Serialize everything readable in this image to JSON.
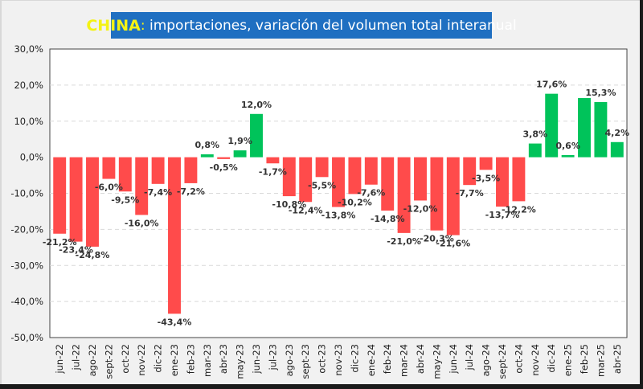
{
  "chart_data": {
    "type": "bar",
    "title": {
      "country": "CHINA",
      "separator": ":",
      "text": " importaciones, variación del volumen total interanual"
    },
    "xlabel": "",
    "ylabel": "",
    "ylim": [
      -50,
      30
    ],
    "yticks": [
      30,
      20,
      10,
      0,
      -10,
      -20,
      -30,
      -40,
      -50
    ],
    "ytick_labels": [
      "30,0%",
      "20,0%",
      "10,0%",
      "0,0%",
      "-10,0%",
      "-20,0%",
      "-30,0%",
      "-40,0%",
      "-50,0%"
    ],
    "grid": true,
    "legend": "none",
    "colors": {
      "positive": "#00c35a",
      "negative": "#ff4b4b"
    },
    "categories": [
      "jun-22",
      "jul-22",
      "ago-22",
      "sept-22",
      "oct-22",
      "nov-22",
      "dic-22",
      "ene-23",
      "feb-23",
      "mar-23",
      "abr-23",
      "may-23",
      "jun-23",
      "jul-23",
      "ago-23",
      "sept-23",
      "oct-23",
      "nov-23",
      "dic-23",
      "ene-24",
      "feb-24",
      "mar-24",
      "abr-24",
      "may-24",
      "jun-24",
      "jul-24",
      "ago-24",
      "sept-24",
      "oct-24",
      "nov-24",
      "dic-24",
      "ene-25",
      "feb-25",
      "mar-25",
      "abr-25"
    ],
    "values": [
      -21.2,
      -23.4,
      -24.8,
      -6.0,
      -9.5,
      -16.0,
      -7.4,
      -43.4,
      -7.2,
      0.8,
      -0.5,
      1.9,
      12.0,
      -1.7,
      -10.8,
      -12.4,
      -5.5,
      -13.8,
      -10.2,
      -7.6,
      -14.8,
      -21.0,
      -12.0,
      -20.3,
      -21.6,
      -7.7,
      -3.5,
      -13.7,
      -12.2,
      3.8,
      17.6,
      0.6,
      16.4,
      15.3,
      4.2
    ],
    "data_labels": [
      "-21,2%",
      "-23,4%",
      "-24,8%",
      "-6,0%",
      "-9,5%",
      "-16,0%",
      "-7,4%",
      "-43,4%",
      "-7,2%",
      "0,8%",
      "-0,5%",
      "1,9%",
      "12,0%",
      "-1,7%",
      "-10,8%",
      "-12,4%",
      "-5,5%",
      "-13,8%",
      "-10,2%",
      "-7,6%",
      "-14,8%",
      "-21,0%",
      "-12,0%",
      "-20,3%",
      "-21,6%",
      "-7,7%",
      "-3,5%",
      "-13,7%",
      "-12,2%",
      "3,8%",
      "17,6%",
      "0,6%",
      "",
      "15,3%",
      "4,2%"
    ]
  }
}
